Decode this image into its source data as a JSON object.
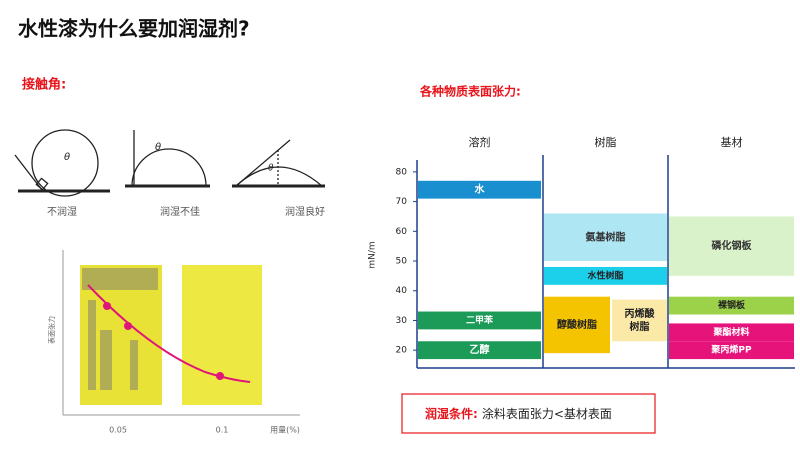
{
  "header": {
    "title": "水性漆为什么要加润湿剂?"
  },
  "contact_angle": {
    "heading": "接触角:",
    "theta": "θ",
    "cases": [
      "不润湿",
      "润湿不佳",
      "润湿良好"
    ],
    "plot": {
      "y_label": "表面张力",
      "x_label": "用量(%)",
      "xticks": [
        "0.05",
        "0.1"
      ]
    }
  },
  "range_chart": {
    "heading": "各种物质表面张力:",
    "y_label": "mN/m",
    "ylim": [
      14,
      84
    ],
    "yticks": [
      80,
      70,
      60,
      50,
      40,
      30,
      20
    ],
    "columns": [
      "溶剂",
      "树脂",
      "基材"
    ],
    "bars": [
      {
        "lines": [
          "水"
        ],
        "column": 0,
        "low": 71,
        "high": 77,
        "color": "#1a8fcf",
        "text_color": "#ffffff"
      },
      {
        "lines": [
          "二甲苯"
        ],
        "column": 0,
        "low": 27,
        "high": 33,
        "color": "#1b9a58",
        "text_color": "#ffffff"
      },
      {
        "lines": [
          "乙醇"
        ],
        "column": 0,
        "low": 17,
        "high": 23,
        "color": "#1b9a58",
        "text_color": "#ffffff"
      },
      {
        "lines": [
          "氨基树脂"
        ],
        "column": 1,
        "low": 50,
        "high": 66,
        "color": "#aee6f3",
        "text_color": "#333333"
      },
      {
        "lines": [
          "水性树脂"
        ],
        "column": 1,
        "low": 42,
        "high": 48,
        "color": "#1ccfea",
        "text_color": "#222222"
      },
      {
        "lines": [
          "醇酸树脂"
        ],
        "column": 1,
        "low": 19,
        "high": 38,
        "color": "#f5c400",
        "text_color": "#222222",
        "part": 0
      },
      {
        "lines": [
          "丙烯酸",
          "树脂"
        ],
        "column": 1,
        "low": 23,
        "high": 37,
        "color": "#fbe9a8",
        "text_color": "#222222",
        "part": 1
      },
      {
        "lines": [
          "磷化钢板"
        ],
        "column": 2,
        "low": 45,
        "high": 65,
        "color": "#d9f2c9",
        "text_color": "#333333"
      },
      {
        "lines": [
          "裸钢板"
        ],
        "column": 2,
        "low": 32,
        "high": 38,
        "color": "#9bd24a",
        "text_color": "#222222"
      },
      {
        "lines": [
          "聚酯材料"
        ],
        "column": 2,
        "low": 23,
        "high": 29,
        "color": "#e6137b",
        "text_color": "#ffffff"
      },
      {
        "lines": [
          "聚丙烯PP"
        ],
        "column": 2,
        "low": 17,
        "high": 23,
        "color": "#e6137b",
        "text_color": "#ffffff"
      }
    ]
  },
  "condition": {
    "label": "润湿条件:",
    "text": "涂料表面张力<基材表面"
  }
}
